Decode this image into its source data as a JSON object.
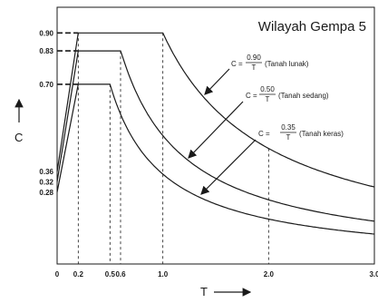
{
  "chart_data": {
    "type": "line",
    "title": "Wilayah Gempa 5",
    "xlabel": "T",
    "ylabel": "C",
    "xlim": [
      0,
      3.0
    ],
    "ylim": [
      0,
      1.0
    ],
    "x_ticks": [
      {
        "value": 0,
        "label": "0"
      },
      {
        "value": 0.2,
        "label": "0.2"
      },
      {
        "value": 0.5,
        "label": "0.5"
      },
      {
        "value": 0.6,
        "label": "0.6"
      },
      {
        "value": 1.0,
        "label": "1.0"
      },
      {
        "value": 2.0,
        "label": "2.0"
      },
      {
        "value": 3.0,
        "label": "3.0"
      }
    ],
    "y_ticks": [
      {
        "value": 0.28,
        "label": "0.28"
      },
      {
        "value": 0.32,
        "label": "0.32"
      },
      {
        "value": 0.36,
        "label": "0.36"
      },
      {
        "value": 0.7,
        "label": "0.70"
      },
      {
        "value": 0.83,
        "label": "0.83"
      },
      {
        "value": 0.9,
        "label": "0.90"
      }
    ],
    "series": [
      {
        "name": "Tanah lunak",
        "x": [
          0,
          0.2,
          1.0,
          1.2,
          1.5,
          2.0,
          2.5,
          3.0
        ],
        "y": [
          0.36,
          0.9,
          0.9,
          0.75,
          0.6,
          0.45,
          0.36,
          0.3
        ],
        "plateau_end": 1.0,
        "numerator": 0.9
      },
      {
        "name": "Tanah sedang",
        "x": [
          0,
          0.2,
          0.6,
          0.8,
          1.0,
          1.5,
          2.0,
          2.5,
          3.0
        ],
        "y": [
          0.32,
          0.83,
          0.83,
          0.625,
          0.5,
          0.333,
          0.25,
          0.2,
          0.167
        ],
        "plateau_end": 0.6,
        "numerator": 0.5
      },
      {
        "name": "Tanah keras",
        "x": [
          0,
          0.2,
          0.5,
          0.7,
          1.0,
          1.5,
          2.0,
          2.5,
          3.0
        ],
        "y": [
          0.28,
          0.7,
          0.7,
          0.5,
          0.35,
          0.233,
          0.175,
          0.14,
          0.117
        ],
        "plateau_end": 0.5,
        "numerator": 0.35
      }
    ],
    "annotations": [
      {
        "lhs": "C =",
        "num": "0.90",
        "den": "T",
        "soil": "(Tanah lunak)"
      },
      {
        "lhs": "C =",
        "num": "0.50",
        "den": "T",
        "soil": "(Tanah sedang)"
      },
      {
        "lhs": "C =",
        "num": "0.35",
        "den": "T",
        "soil": "(Tanah keras)"
      }
    ]
  }
}
